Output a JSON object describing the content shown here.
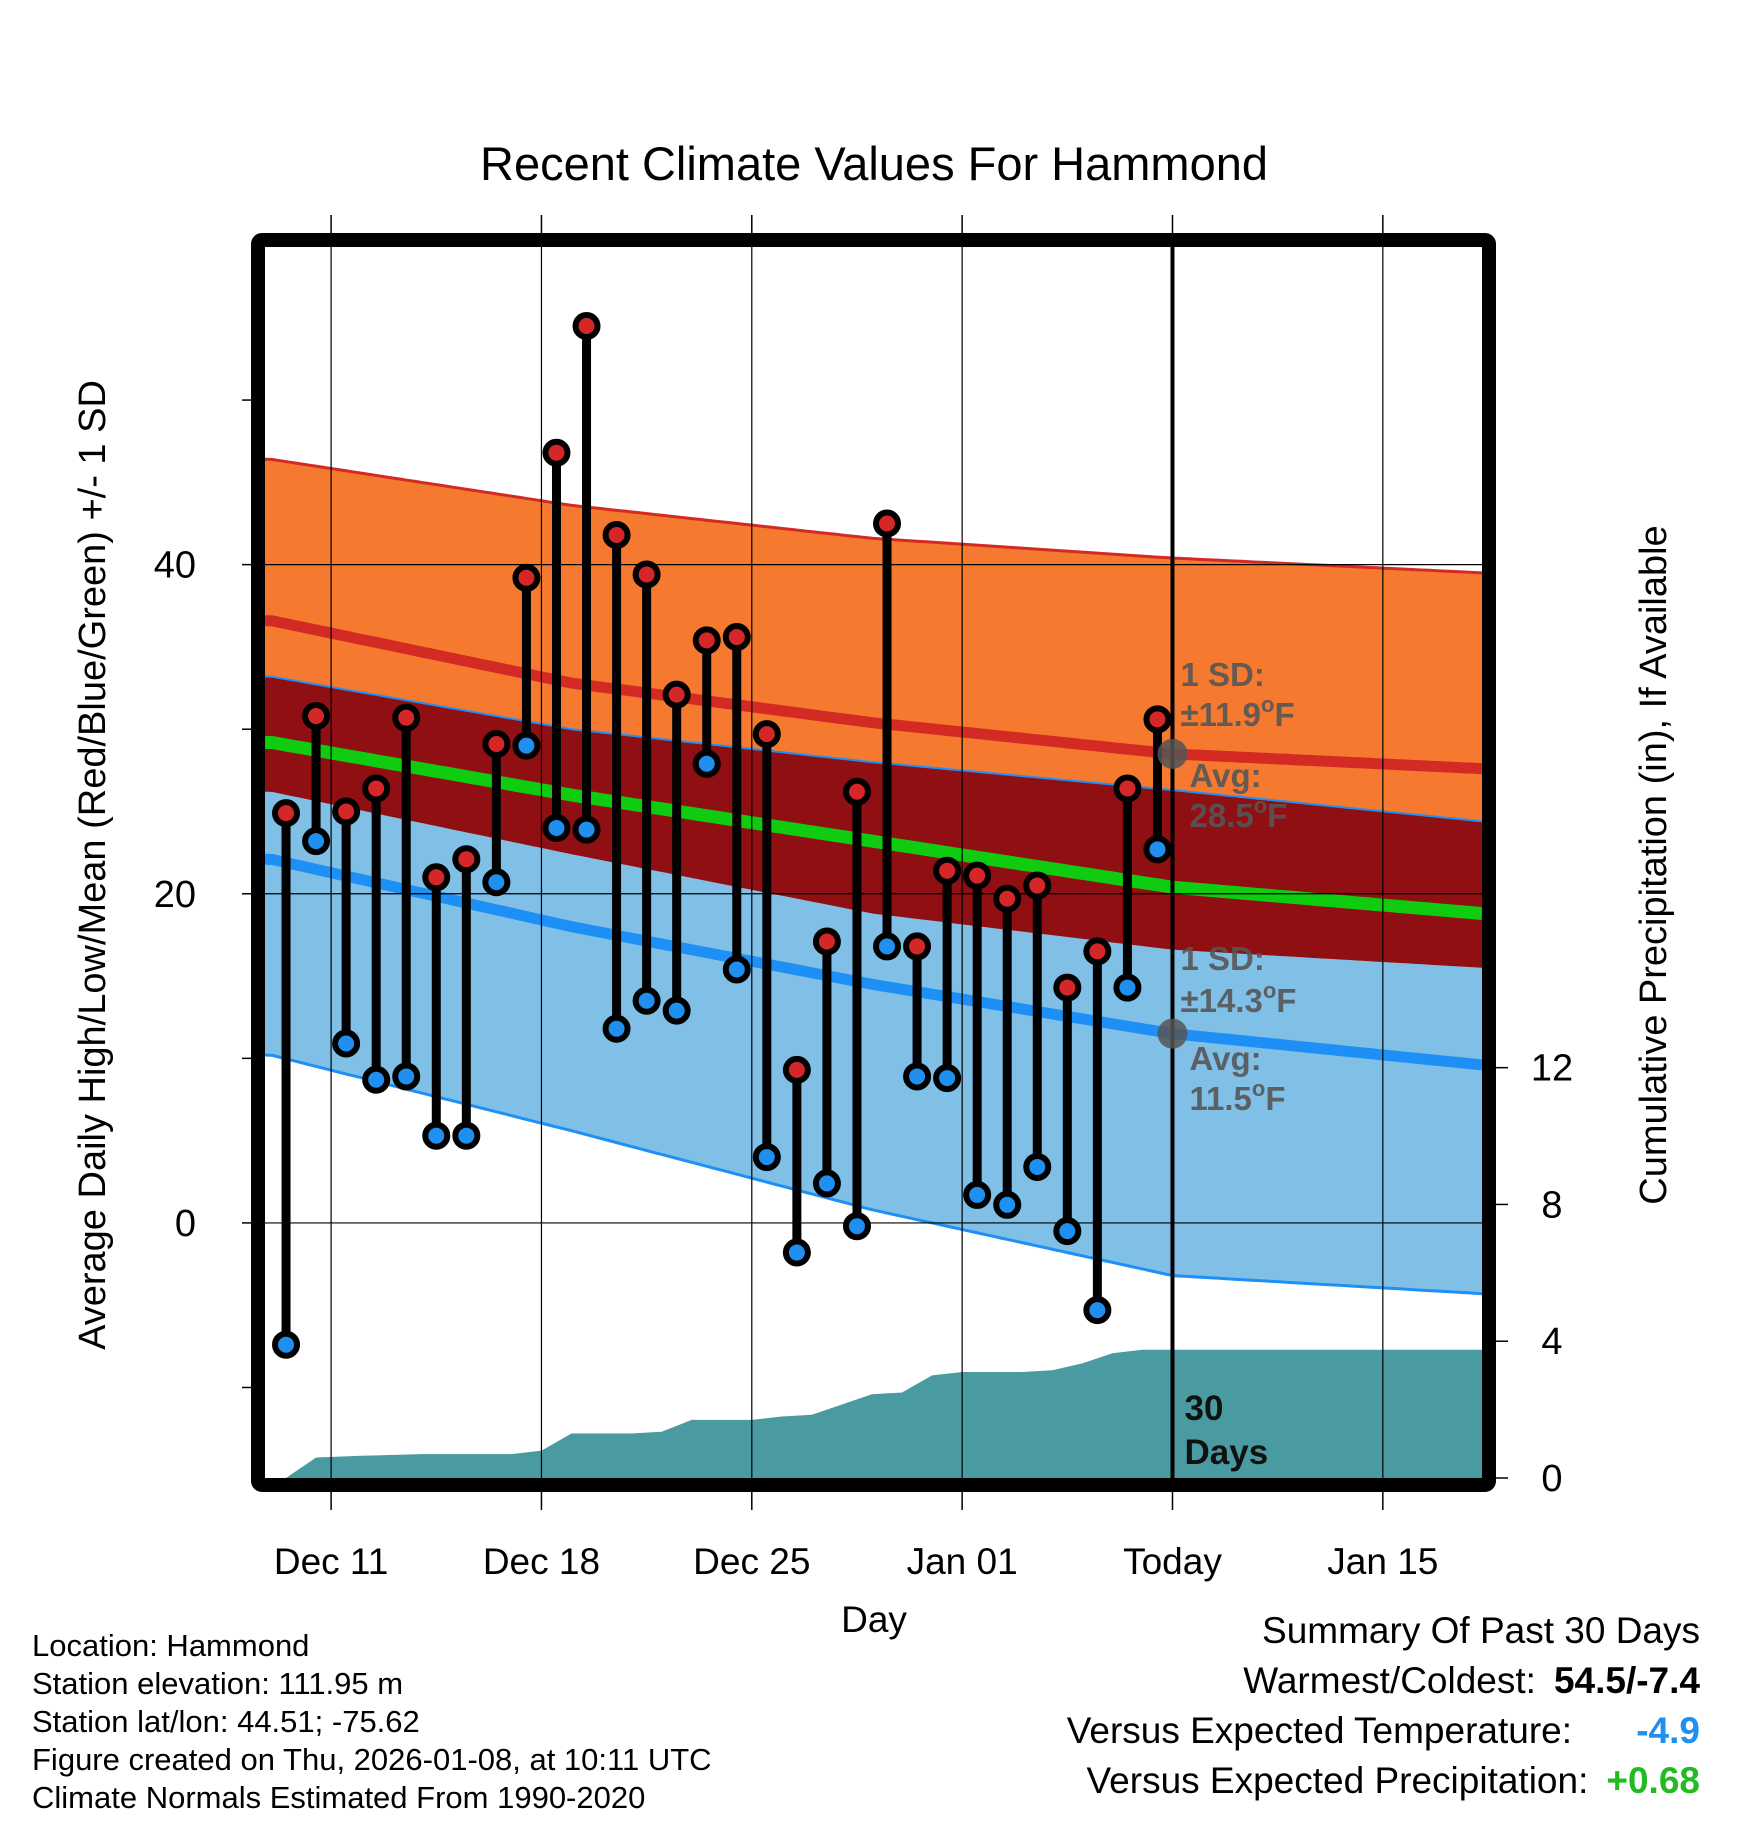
{
  "chart_data": {
    "type": "line",
    "title": "Recent Climate Values For Hammond",
    "xlabel": "Day",
    "ylabel": "Average Daily High/Low/Mean (Red/Blue/Green) +/- 1 SD",
    "y2label": "Cumulative Precipitation (in), If Available",
    "x_ticks": [
      "Dec 11",
      "Dec 18",
      "Dec 25",
      "Jan 01",
      "Today",
      "Jan 15"
    ],
    "x_tick_days": [
      2,
      9,
      16,
      23,
      30,
      37
    ],
    "xlim": [
      -0.2,
      40.3
    ],
    "ylim": [
      -15.5,
      59.3
    ],
    "y_ticks": [
      0,
      20,
      40
    ],
    "y2lim": [
      0,
      36
    ],
    "y2_ticks": [
      0,
      4,
      8,
      12
    ],
    "today_day": 30,
    "today_label": "30\nDays",
    "normals": {
      "high_mean": [
        [
          0,
          36.6
        ],
        [
          10,
          32.8
        ],
        [
          20,
          30.4
        ],
        [
          30,
          28.5
        ],
        [
          40.3,
          27.6
        ]
      ],
      "high_upper": [
        [
          0,
          46.4
        ],
        [
          10,
          43.6
        ],
        [
          20,
          41.6
        ],
        [
          30,
          40.4
        ],
        [
          40.3,
          39.5
        ]
      ],
      "high_lower": [
        [
          0,
          33.2
        ],
        [
          10,
          30.0
        ],
        [
          20,
          28.0
        ],
        [
          30,
          26.3
        ],
        [
          40.3,
          24.4
        ]
      ],
      "mean": [
        [
          0,
          29.2
        ],
        [
          10,
          26.0
        ],
        [
          20,
          23.2
        ],
        [
          30,
          20.4
        ],
        [
          40.3,
          18.8
        ]
      ],
      "low_mean": [
        [
          0,
          22.1
        ],
        [
          10,
          18.0
        ],
        [
          20,
          14.5
        ],
        [
          30,
          11.5
        ],
        [
          40.3,
          9.6
        ]
      ],
      "low_upper": [
        [
          0,
          26.2
        ],
        [
          10,
          22.4
        ],
        [
          20,
          18.8
        ],
        [
          30,
          16.6
        ],
        [
          40.3,
          15.5
        ]
      ],
      "low_lower": [
        [
          0,
          10.2
        ],
        [
          10,
          5.6
        ],
        [
          20,
          0.8
        ],
        [
          30,
          -3.2
        ],
        [
          40.3,
          -4.3
        ]
      ]
    },
    "series": [
      {
        "name": "Daily High",
        "color": "#d62728",
        "values": [
          24.9,
          30.8,
          25.0,
          26.4,
          30.7,
          21.0,
          22.1,
          29.1,
          39.2,
          46.8,
          54.5,
          41.8,
          39.4,
          32.1,
          35.4,
          35.6,
          29.7,
          9.3,
          17.1,
          26.2,
          42.5,
          16.8,
          21.4,
          21.1,
          19.7,
          20.5,
          14.3,
          16.5,
          26.4,
          30.6
        ]
      },
      {
        "name": "Daily Low",
        "color": "#1f8ff0",
        "values": [
          -7.4,
          23.2,
          10.9,
          8.7,
          8.9,
          5.3,
          5.3,
          20.7,
          29.0,
          24.0,
          23.9,
          11.8,
          13.5,
          12.9,
          27.9,
          15.4,
          4.0,
          -1.8,
          2.4,
          -0.2,
          16.8,
          8.9,
          8.8,
          1.7,
          1.1,
          3.4,
          -0.5,
          -5.3,
          14.3,
          22.7
        ]
      }
    ],
    "precip_cumulative": [
      [
        0.5,
        0
      ],
      [
        1.5,
        0.6
      ],
      [
        3,
        0.65
      ],
      [
        5,
        0.7
      ],
      [
        8,
        0.7
      ],
      [
        9,
        0.8
      ],
      [
        10,
        1.3
      ],
      [
        12,
        1.3
      ],
      [
        13,
        1.35
      ],
      [
        14,
        1.7
      ],
      [
        16,
        1.7
      ],
      [
        17,
        1.8
      ],
      [
        18,
        1.85
      ],
      [
        19,
        2.15
      ],
      [
        20,
        2.45
      ],
      [
        21,
        2.5
      ],
      [
        22,
        3.0
      ],
      [
        23,
        3.1
      ],
      [
        25,
        3.1
      ],
      [
        26,
        3.15
      ],
      [
        27,
        3.35
      ],
      [
        28,
        3.65
      ],
      [
        29,
        3.75
      ],
      [
        30,
        3.75
      ],
      [
        40.3,
        3.75
      ]
    ],
    "annotations": {
      "high_sd": "1 SD:\n±11.9°F",
      "high_avg": "Avg:\n28.5°F",
      "low_sd": "1 SD:\n±14.3°F",
      "low_avg": "Avg:\n11.5°F",
      "high_avg_value": 28.5,
      "low_avg_value": 11.5
    }
  },
  "info": {
    "location": "Location: Hammond",
    "elevation": "Station elevation: 111.95 m",
    "latlon": "Station lat/lon: 44.51; -75.62",
    "created": "Figure created on Thu, 2026-01-08, at 10:11 UTC",
    "normals": "Climate Normals Estimated From 1990-2020"
  },
  "summary": {
    "title": "Summary Of Past 30 Days",
    "warm_cold_label": "Warmest/Coldest:",
    "warm_cold_value": "54.5/-7.4",
    "temp_label": "Versus Expected Temperature:",
    "temp_value": "-4.9",
    "temp_color": "#1f8ff0",
    "precip_label": "Versus Expected Precipitation:",
    "precip_value": "+0.68",
    "precip_color": "#22bb22"
  },
  "colors": {
    "high_band": "#f57a30",
    "high_line": "#d42a24",
    "mid_band": "#8f0f12",
    "mean_line": "#10cc10",
    "low_band": "#80c0e6",
    "low_line": "#1e90f5",
    "precip": "#4a9aa2",
    "annotation": "#555555"
  }
}
